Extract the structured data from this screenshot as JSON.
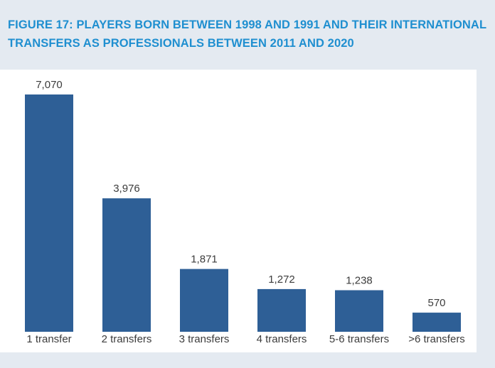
{
  "title_lines": [
    "FIGURE 17: PLAYERS BORN BETWEEN 1998 AND 1991 AND THEIR INTERNATIONAL",
    "TRANSFERS AS PROFESSIONALS BETWEEN 2011 AND 2020"
  ],
  "colors": {
    "bar": "#2e5f96",
    "title": "#1f8fd0",
    "background": "#e4eaf1"
  },
  "chart_data": {
    "type": "bar",
    "title": "FIGURE 17: PLAYERS BORN BETWEEN 1998 AND 1991 AND THEIR INTERNATIONAL TRANSFERS AS PROFESSIONALS BETWEEN 2011 AND 2020",
    "categories": [
      "1 transfer",
      "2 transfers",
      "3 transfers",
      "4 transfers",
      "5-6 transfers",
      ">6 transfers"
    ],
    "values": [
      7070,
      3976,
      1871,
      1272,
      1238,
      570
    ],
    "value_labels": [
      "7,070",
      "3,976",
      "1,871",
      "1,272",
      "1,238",
      "570"
    ],
    "ylim": [
      0,
      7070
    ],
    "grid": false,
    "legend": "none"
  }
}
